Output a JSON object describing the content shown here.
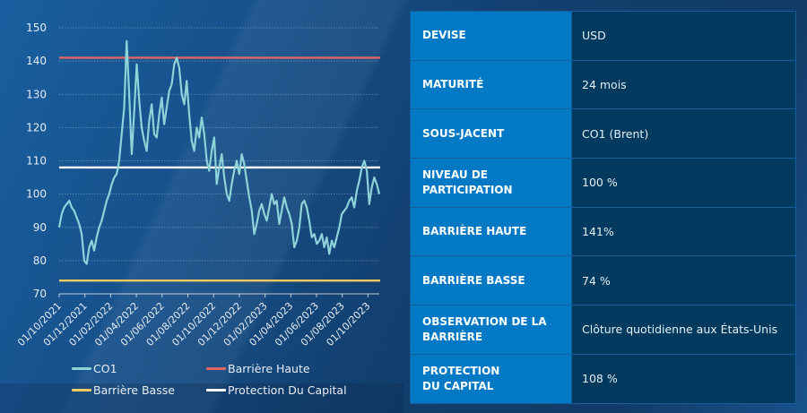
{
  "chart_data": {
    "type": "line",
    "title": "",
    "xlabel": "",
    "ylabel": "",
    "ylim": [
      70,
      150
    ],
    "yticks": [
      70,
      80,
      90,
      100,
      110,
      120,
      130,
      140,
      150
    ],
    "grid": true,
    "legend_position": "bottom",
    "x_tick_labels": [
      "01/10/2021",
      "01/12/2021",
      "01/02/2022",
      "01/04/2022",
      "01/06/2022",
      "01/08/2022",
      "01/10/2022",
      "01/12/2022",
      "01/02/2023",
      "01/04/2023",
      "01/06/2023",
      "01/08/2023",
      "01/10/2023"
    ],
    "series": [
      {
        "name": "CO1",
        "color": "#8dd3d8",
        "values": [
          90,
          94,
          96,
          97,
          98,
          96,
          95,
          93,
          91,
          88,
          80,
          79,
          84,
          86,
          83,
          87,
          90,
          92,
          95,
          98,
          100,
          103,
          105,
          106,
          110,
          118,
          126,
          146,
          130,
          112,
          125,
          139,
          128,
          120,
          116,
          113,
          122,
          127,
          118,
          117,
          124,
          129,
          121,
          126,
          131,
          133,
          139,
          141,
          138,
          130,
          127,
          134,
          124,
          116,
          113,
          120,
          117,
          123,
          118,
          110,
          107,
          113,
          117,
          103,
          108,
          112,
          105,
          100,
          98,
          103,
          107,
          110,
          106,
          112,
          109,
          104,
          99,
          95,
          88,
          91,
          95,
          97,
          94,
          92,
          96,
          100,
          97,
          98,
          91,
          95,
          99,
          96,
          94,
          91,
          84,
          86,
          90,
          97,
          98,
          96,
          92,
          87,
          88,
          85,
          86,
          88,
          84,
          87,
          82,
          86,
          84,
          87,
          90,
          94,
          95,
          96,
          98,
          99,
          96,
          101,
          104,
          108,
          110,
          107,
          97,
          102,
          105,
          103,
          100
        ]
      },
      {
        "name": "Barrière Haute",
        "color": "#e06666",
        "constant": 141
      },
      {
        "name": "Barrière Basse",
        "color": "#f3c95b",
        "constant": 74
      },
      {
        "name": "Protection Du Capital",
        "color": "#ffffff",
        "constant": 108
      }
    ]
  },
  "legend": {
    "co1": "CO1",
    "barriere_haute": "Barrière Haute",
    "barriere_basse": "Barrière Basse",
    "protection": "Protection Du Capital"
  },
  "colors": {
    "co1": "#8dd3d8",
    "barriere_haute": "#e06666",
    "barriere_basse": "#f3c95b",
    "protection": "#ffffff",
    "label_cell": "#0279c4",
    "value_cell": "#003a5e"
  },
  "table": {
    "rows": [
      {
        "label": "DEVISE",
        "value": "USD"
      },
      {
        "label": "MATURITÉ",
        "value": "24 mois"
      },
      {
        "label": "SOUS-JACENT",
        "value": "CO1 (Brent)"
      },
      {
        "label": "NIVEAU DE PARTICIPATION",
        "value": "100 %"
      },
      {
        "label": "BARRIÈRE HAUTE",
        "value": "141%"
      },
      {
        "label": "BARRIÈRE BASSE",
        "value": "74 %"
      },
      {
        "label": "OBSERVATION DE LA BARRIÈRE",
        "value": "Clôture quotidienne aux États-Unis"
      },
      {
        "label": "PROTECTION DU CAPITAL",
        "value": "108 %"
      }
    ]
  }
}
